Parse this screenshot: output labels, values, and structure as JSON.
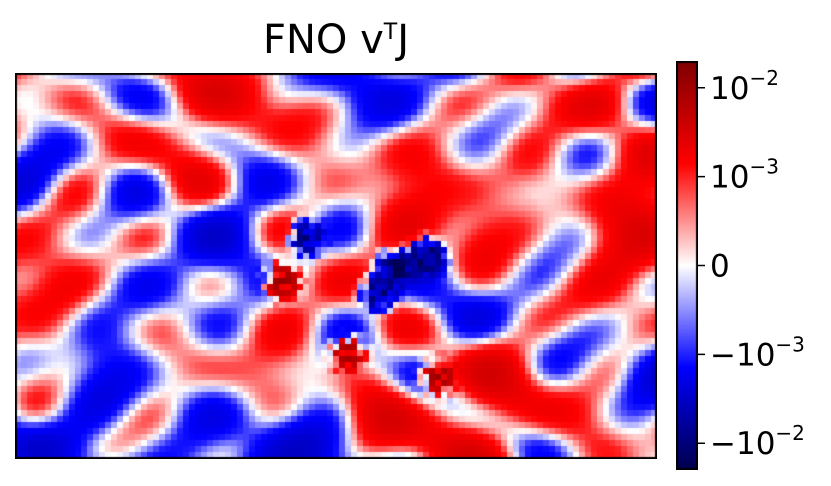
{
  "chart_data": {
    "type": "heatmap",
    "title": "FNO v",
    "title_sup": "T",
    "title_suffix": "J",
    "xlabel": "",
    "ylabel": "",
    "colormap": "seismic",
    "colorbar": {
      "scale": "symlog",
      "range": [
        -0.02,
        0.02
      ],
      "linthresh": 0.001,
      "ticks": [
        {
          "value": 0.01,
          "label": "10",
          "exp": "−2"
        },
        {
          "value": 0.001,
          "label": "10",
          "exp": "−3"
        },
        {
          "value": 0,
          "label": "0",
          "exp": ""
        },
        {
          "value": -0.001,
          "label": "−10",
          "exp": "−3"
        },
        {
          "value": -0.01,
          "label": "−10",
          "exp": "−2"
        }
      ]
    },
    "grid": {
      "cols": 107,
      "rows": 64
    },
    "features": [
      {
        "kind": "strong-negative",
        "x": 63,
        "y": 32,
        "value": -0.02
      },
      {
        "kind": "strong-negative",
        "x": 68,
        "y": 30,
        "value": -0.02
      },
      {
        "kind": "strong-negative",
        "x": 60,
        "y": 36,
        "value": -0.015
      },
      {
        "kind": "strong-positive",
        "x": 44,
        "y": 34,
        "value": 0.015
      },
      {
        "kind": "strong-positive",
        "x": 55,
        "y": 46,
        "value": 0.012
      },
      {
        "kind": "strong-positive",
        "x": 70,
        "y": 50,
        "value": 0.012
      },
      {
        "kind": "strong-negative",
        "x": 48,
        "y": 27,
        "value": -0.012
      },
      {
        "kind": "mild-positive",
        "x": 76,
        "y": 27,
        "value": 0.002
      },
      {
        "kind": "mild-positive",
        "x": 98,
        "y": 3,
        "value": 0.0015
      },
      {
        "kind": "mild-positive",
        "x": 60,
        "y": 56,
        "value": 0.0015
      },
      {
        "kind": "mild-negative",
        "x": 12,
        "y": 40,
        "value": -0.001
      },
      {
        "kind": "mild-negative",
        "x": 80,
        "y": 10,
        "value": -0.0008
      }
    ]
  }
}
